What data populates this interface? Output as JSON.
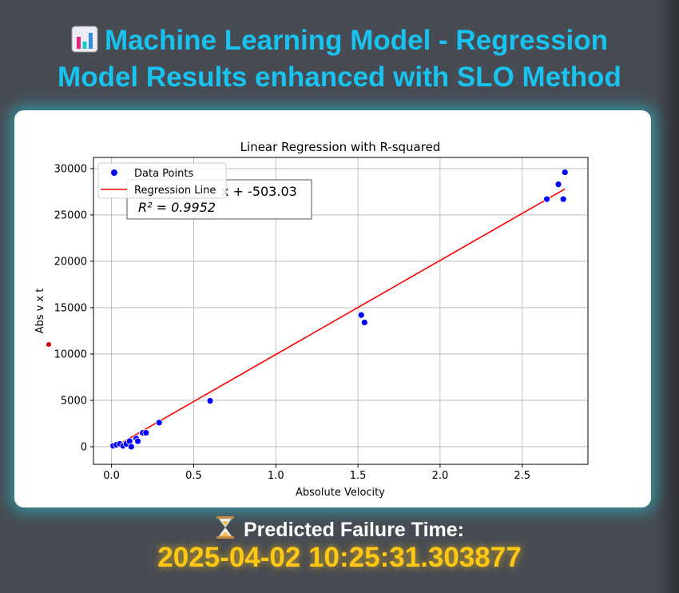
{
  "header": {
    "icon": "bar-chart-icon",
    "title_line1": "Machine Learning Model - Regression",
    "title_line2": "Model Results enhanced with SLO Method"
  },
  "failure": {
    "icon": "hourglass-icon",
    "label": "Predicted Failure Time:",
    "time": "2025-04-02 10:25:31.303877"
  },
  "colors": {
    "title": "#18c3ef",
    "time": "#ffc815",
    "points": "#0000ff",
    "regression_line": "#ff0000",
    "background": "#474b53"
  },
  "chart_data": {
    "type": "scatter",
    "title": "Linear Regression with R-squared",
    "xlabel": "Absolute Velocity",
    "ylabel": "Abs v x t",
    "xlim": [
      -0.11,
      2.9
    ],
    "ylim": [
      -1900,
      31200
    ],
    "x_ticks": [
      0.0,
      0.5,
      1.0,
      1.5,
      2.0,
      2.5
    ],
    "x_tick_labels": [
      "0.0",
      "0.5",
      "1.0",
      "1.5",
      "2.0",
      "2.5"
    ],
    "y_ticks": [
      0,
      5000,
      10000,
      15000,
      20000,
      25000,
      30000
    ],
    "y_tick_labels": [
      "0",
      "5000",
      "10000",
      "15000",
      "20000",
      "25000",
      "30000"
    ],
    "grid": true,
    "legend_position": "top-left",
    "legend": [
      "Data Points",
      "Regression Line"
    ],
    "equation_visible": "x + -503.03",
    "r_squared_label": "R² = 0.9952",
    "series": [
      {
        "name": "Data Points",
        "type": "scatter",
        "x": [
          0.01,
          0.03,
          0.05,
          0.07,
          0.09,
          0.11,
          0.12,
          0.15,
          0.16,
          0.19,
          0.21,
          0.29,
          0.6,
          1.52,
          1.54,
          2.65,
          2.72,
          2.75,
          2.76
        ],
        "y": [
          100,
          200,
          300,
          100,
          300,
          600,
          0,
          900,
          600,
          1500,
          1500,
          2600,
          4950,
          14200,
          13400,
          26700,
          28300,
          26700,
          29600
        ]
      },
      {
        "name": "Regression Line",
        "type": "line",
        "x": [
          0.0,
          2.76
        ],
        "y": [
          -200,
          27800
        ]
      }
    ]
  }
}
